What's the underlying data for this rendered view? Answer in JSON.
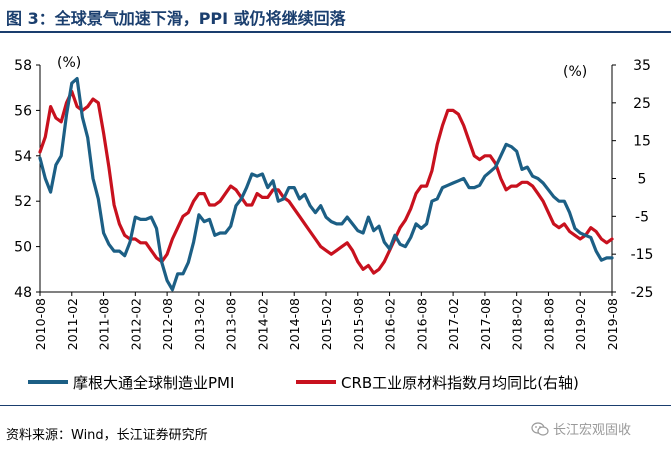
{
  "title": "图 3：全球景气加速下滑，PPI 或仍将继续回落",
  "source": "资料来源：Wind，长江证券研究所",
  "watermark": "长江宏观固收",
  "watermark_icon": "wechat-icon",
  "colors": {
    "pmi": "#1c5f85",
    "crb": "#c8111e",
    "title": "#1a3e6e"
  },
  "chart_data": {
    "type": "line",
    "title": "",
    "y_left": {
      "unit": "(%)",
      "min": 48,
      "max": 58,
      "ticks": [
        48,
        50,
        52,
        54,
        56,
        58
      ]
    },
    "y_right": {
      "unit": "(%)",
      "min": -25,
      "max": 35,
      "ticks": [
        -25,
        -15,
        -5,
        5,
        15,
        25,
        35
      ]
    },
    "x_tick_labels": [
      "2010-08",
      "2011-02",
      "2011-08",
      "2012-02",
      "2012-08",
      "2013-02",
      "2013-08",
      "2014-02",
      "2014-08",
      "2015-02",
      "2015-08",
      "2016-02",
      "2016-08",
      "2017-02",
      "2017-08",
      "2018-02",
      "2018-08",
      "2019-02",
      "2019-08"
    ],
    "x_range": [
      "2010-08",
      "2019-08"
    ],
    "grid": false,
    "legend_position": "bottom",
    "series": [
      {
        "name": "摩根大通全球制造业PMI",
        "axis": "left",
        "points": [
          [
            "2010-08",
            53.9
          ],
          [
            "2010-09",
            53.0
          ],
          [
            "2010-10",
            52.4
          ],
          [
            "2010-11",
            53.6
          ],
          [
            "2010-12",
            54.0
          ],
          [
            "2011-01",
            55.8
          ],
          [
            "2011-02",
            57.2
          ],
          [
            "2011-03",
            57.4
          ],
          [
            "2011-04",
            55.7
          ],
          [
            "2011-05",
            54.8
          ],
          [
            "2011-06",
            53.0
          ],
          [
            "2011-07",
            52.1
          ],
          [
            "2011-08",
            50.6
          ],
          [
            "2011-09",
            50.1
          ],
          [
            "2011-10",
            49.8
          ],
          [
            "2011-11",
            49.8
          ],
          [
            "2011-12",
            49.6
          ],
          [
            "2012-01",
            50.2
          ],
          [
            "2012-02",
            51.3
          ],
          [
            "2012-03",
            51.2
          ],
          [
            "2012-04",
            51.2
          ],
          [
            "2012-05",
            51.3
          ],
          [
            "2012-06",
            50.8
          ],
          [
            "2012-07",
            49.3
          ],
          [
            "2012-08",
            48.5
          ],
          [
            "2012-09",
            48.1
          ],
          [
            "2012-10",
            48.8
          ],
          [
            "2012-11",
            48.8
          ],
          [
            "2012-12",
            49.3
          ],
          [
            "2013-01",
            50.2
          ],
          [
            "2013-02",
            51.4
          ],
          [
            "2013-03",
            51.1
          ],
          [
            "2013-04",
            51.2
          ],
          [
            "2013-05",
            50.5
          ],
          [
            "2013-06",
            50.6
          ],
          [
            "2013-07",
            50.6
          ],
          [
            "2013-08",
            50.9
          ],
          [
            "2013-09",
            51.8
          ],
          [
            "2013-10",
            52.1
          ],
          [
            "2013-11",
            52.6
          ],
          [
            "2013-12",
            53.2
          ],
          [
            "2014-01",
            53.1
          ],
          [
            "2014-02",
            53.2
          ],
          [
            "2014-03",
            52.6
          ],
          [
            "2014-04",
            52.9
          ],
          [
            "2014-05",
            52.0
          ],
          [
            "2014-06",
            52.1
          ],
          [
            "2014-07",
            52.6
          ],
          [
            "2014-08",
            52.6
          ],
          [
            "2014-09",
            52.1
          ],
          [
            "2014-10",
            52.3
          ],
          [
            "2014-11",
            51.8
          ],
          [
            "2014-12",
            51.5
          ],
          [
            "2015-01",
            51.8
          ],
          [
            "2015-02",
            51.3
          ],
          [
            "2015-03",
            51.1
          ],
          [
            "2015-04",
            51.0
          ],
          [
            "2015-05",
            51.0
          ],
          [
            "2015-06",
            51.3
          ],
          [
            "2015-07",
            51.0
          ],
          [
            "2015-08",
            50.7
          ],
          [
            "2015-09",
            50.6
          ],
          [
            "2015-10",
            51.3
          ],
          [
            "2015-11",
            50.7
          ],
          [
            "2015-12",
            50.9
          ],
          [
            "2016-01",
            50.2
          ],
          [
            "2016-02",
            49.9
          ],
          [
            "2016-03",
            50.5
          ],
          [
            "2016-04",
            50.1
          ],
          [
            "2016-05",
            50.0
          ],
          [
            "2016-06",
            50.4
          ],
          [
            "2016-07",
            51.0
          ],
          [
            "2016-08",
            50.8
          ],
          [
            "2016-09",
            51.0
          ],
          [
            "2016-10",
            52.0
          ],
          [
            "2016-11",
            52.1
          ],
          [
            "2016-12",
            52.6
          ],
          [
            "2017-01",
            52.7
          ],
          [
            "2017-02",
            52.8
          ],
          [
            "2017-03",
            52.9
          ],
          [
            "2017-04",
            53.0
          ],
          [
            "2017-05",
            52.6
          ],
          [
            "2017-06",
            52.6
          ],
          [
            "2017-07",
            52.7
          ],
          [
            "2017-08",
            53.1
          ],
          [
            "2017-09",
            53.3
          ],
          [
            "2017-10",
            53.5
          ],
          [
            "2017-11",
            54.0
          ],
          [
            "2017-12",
            54.5
          ],
          [
            "2018-01",
            54.4
          ],
          [
            "2018-02",
            54.2
          ],
          [
            "2018-03",
            53.4
          ],
          [
            "2018-04",
            53.5
          ],
          [
            "2018-05",
            53.1
          ],
          [
            "2018-06",
            53.0
          ],
          [
            "2018-07",
            52.8
          ],
          [
            "2018-08",
            52.5
          ],
          [
            "2018-09",
            52.2
          ],
          [
            "2018-10",
            52.0
          ],
          [
            "2018-11",
            52.0
          ],
          [
            "2018-12",
            51.5
          ],
          [
            "2019-01",
            50.8
          ],
          [
            "2019-02",
            50.6
          ],
          [
            "2019-03",
            50.5
          ],
          [
            "2019-04",
            50.4
          ],
          [
            "2019-05",
            49.8
          ],
          [
            "2019-06",
            49.4
          ],
          [
            "2019-07",
            49.5
          ],
          [
            "2019-08",
            49.5
          ]
        ]
      },
      {
        "name": "CRB工业原材料指数月均同比(右轴)",
        "axis": "right",
        "points": [
          [
            "2010-08",
            12
          ],
          [
            "2010-09",
            16
          ],
          [
            "2010-10",
            24
          ],
          [
            "2010-11",
            21
          ],
          [
            "2010-12",
            20
          ],
          [
            "2011-01",
            25
          ],
          [
            "2011-02",
            28
          ],
          [
            "2011-03",
            24
          ],
          [
            "2011-04",
            23
          ],
          [
            "2011-05",
            24
          ],
          [
            "2011-06",
            26
          ],
          [
            "2011-07",
            25
          ],
          [
            "2011-08",
            17
          ],
          [
            "2011-09",
            8
          ],
          [
            "2011-10",
            -2
          ],
          [
            "2011-11",
            -7
          ],
          [
            "2011-12",
            -10
          ],
          [
            "2012-01",
            -11
          ],
          [
            "2012-02",
            -11
          ],
          [
            "2012-03",
            -12
          ],
          [
            "2012-04",
            -12
          ],
          [
            "2012-05",
            -14
          ],
          [
            "2012-06",
            -16
          ],
          [
            "2012-07",
            -17
          ],
          [
            "2012-08",
            -15
          ],
          [
            "2012-09",
            -11
          ],
          [
            "2012-10",
            -8
          ],
          [
            "2012-11",
            -5
          ],
          [
            "2012-12",
            -4
          ],
          [
            "2013-01",
            -1
          ],
          [
            "2013-02",
            1
          ],
          [
            "2013-03",
            1
          ],
          [
            "2013-04",
            -2
          ],
          [
            "2013-05",
            -2
          ],
          [
            "2013-06",
            -1
          ],
          [
            "2013-07",
            1
          ],
          [
            "2013-08",
            3
          ],
          [
            "2013-09",
            2
          ],
          [
            "2013-10",
            0
          ],
          [
            "2013-11",
            -2
          ],
          [
            "2013-12",
            -2
          ],
          [
            "2014-01",
            1
          ],
          [
            "2014-02",
            0
          ],
          [
            "2014-03",
            0
          ],
          [
            "2014-04",
            2
          ],
          [
            "2014-05",
            2
          ],
          [
            "2014-06",
            0
          ],
          [
            "2014-07",
            -1
          ],
          [
            "2014-08",
            -3
          ],
          [
            "2014-09",
            -5
          ],
          [
            "2014-10",
            -7
          ],
          [
            "2014-11",
            -9
          ],
          [
            "2014-12",
            -11
          ],
          [
            "2015-01",
            -13
          ],
          [
            "2015-02",
            -14
          ],
          [
            "2015-03",
            -15
          ],
          [
            "2015-04",
            -14
          ],
          [
            "2015-05",
            -13
          ],
          [
            "2015-06",
            -12
          ],
          [
            "2015-07",
            -14
          ],
          [
            "2015-08",
            -17
          ],
          [
            "2015-09",
            -19
          ],
          [
            "2015-10",
            -18
          ],
          [
            "2015-11",
            -20
          ],
          [
            "2015-12",
            -19
          ],
          [
            "2016-01",
            -17
          ],
          [
            "2016-02",
            -14
          ],
          [
            "2016-03",
            -11
          ],
          [
            "2016-04",
            -8
          ],
          [
            "2016-05",
            -6
          ],
          [
            "2016-06",
            -3
          ],
          [
            "2016-07",
            1
          ],
          [
            "2016-08",
            3
          ],
          [
            "2016-09",
            3
          ],
          [
            "2016-10",
            7
          ],
          [
            "2016-11",
            14
          ],
          [
            "2016-12",
            19
          ],
          [
            "2017-01",
            23
          ],
          [
            "2017-02",
            23
          ],
          [
            "2017-03",
            22
          ],
          [
            "2017-04",
            19
          ],
          [
            "2017-05",
            15
          ],
          [
            "2017-06",
            11
          ],
          [
            "2017-07",
            10
          ],
          [
            "2017-08",
            11
          ],
          [
            "2017-09",
            11
          ],
          [
            "2017-10",
            9
          ],
          [
            "2017-11",
            5
          ],
          [
            "2017-12",
            2
          ],
          [
            "2018-01",
            3
          ],
          [
            "2018-02",
            3
          ],
          [
            "2018-03",
            4
          ],
          [
            "2018-04",
            4
          ],
          [
            "2018-05",
            3
          ],
          [
            "2018-06",
            1
          ],
          [
            "2018-07",
            -1
          ],
          [
            "2018-08",
            -4
          ],
          [
            "2018-09",
            -7
          ],
          [
            "2018-10",
            -8
          ],
          [
            "2018-11",
            -7
          ],
          [
            "2018-12",
            -9
          ],
          [
            "2019-01",
            -10
          ],
          [
            "2019-02",
            -11
          ],
          [
            "2019-03",
            -10
          ],
          [
            "2019-04",
            -8
          ],
          [
            "2019-05",
            -9
          ],
          [
            "2019-06",
            -11
          ],
          [
            "2019-07",
            -12
          ],
          [
            "2019-08",
            -11
          ]
        ]
      }
    ]
  }
}
